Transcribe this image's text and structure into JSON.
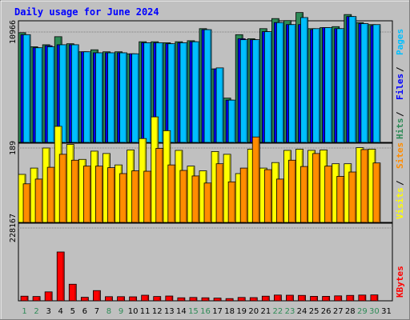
{
  "chart_data": {
    "type": "bar",
    "title": "Daily usage for June 2024",
    "x": [
      "1",
      "2",
      "3",
      "4",
      "5",
      "6",
      "7",
      "8",
      "9",
      "10",
      "11",
      "12",
      "13",
      "14",
      "15",
      "16",
      "17",
      "18",
      "19",
      "20",
      "21",
      "22",
      "23",
      "24",
      "25",
      "26",
      "27",
      "28",
      "29",
      "30",
      "31"
    ],
    "weekend_days": [
      "1",
      "2",
      "8",
      "9",
      "15",
      "16",
      "22",
      "23",
      "29",
      "30"
    ],
    "panels": [
      {
        "name": "traffic",
        "scale_label": "10966",
        "scale_value": 10966,
        "legend": [
          {
            "label": "Hits",
            "color": "#2e8b57"
          },
          {
            "label": "Files",
            "color": "#0000ff"
          },
          {
            "label": "Pages",
            "color": "#00bfff"
          }
        ],
        "series": [
          {
            "name": "Hits",
            "color": "#2e8b57",
            "values": [
              10900,
              9500,
              9700,
              10500,
              9800,
              9000,
              9200,
              9000,
              9000,
              8800,
              10000,
              10000,
              9900,
              10000,
              10100,
              11300,
              7300,
              4400,
              10700,
              10300,
              11300,
              12300,
              12100,
              12900,
              11300,
              11400,
              11500,
              12700,
              11900,
              11700,
              null
            ]
          },
          {
            "name": "Files",
            "color": "#0000ff",
            "values": [
              10700,
              9400,
              9600,
              9700,
              9700,
              9000,
              8900,
              8900,
              8900,
              8800,
              9900,
              9900,
              9800,
              9900,
              10000,
              11200,
              7300,
              4200,
              10300,
              10200,
              11000,
              11900,
              11700,
              11700,
              11200,
              11400,
              11300,
              12500,
              11800,
              11600,
              null
            ]
          },
          {
            "name": "Pages",
            "color": "#00bfff",
            "values": [
              10700,
              9400,
              9500,
              9700,
              9700,
              9000,
              8900,
              8900,
              8900,
              8800,
              9900,
              9900,
              9800,
              9900,
              10000,
              11200,
              7400,
              4200,
              10200,
              10200,
              11000,
              11900,
              11700,
              12400,
              11300,
              11400,
              11300,
              12500,
              11800,
              11700,
              null
            ]
          }
        ]
      },
      {
        "name": "visits",
        "scale_label": "189",
        "scale_value": 189,
        "legend": [
          {
            "label": "Visits",
            "color": "#ffff00"
          },
          {
            "label": "Sites",
            "color": "#ff8c00"
          }
        ],
        "series": [
          {
            "name": "Visits",
            "color": "#ffff00",
            "values": [
              122,
              138,
              189,
              244,
              198,
              160,
              181,
              175,
              146,
              184,
              213,
              268,
              233,
              183,
              143,
              131,
              180,
              173,
              124,
              186,
              138,
              152,
              183,
              186,
              183,
              184,
              149,
              149,
              190,
              186,
              null
            ]
          },
          {
            "name": "Sites",
            "color": "#ff8c00",
            "values": [
              98,
              110,
              140,
              173,
              158,
              143,
              143,
              139,
              124,
              131,
              130,
              188,
              146,
              132,
              118,
              100,
              149,
              103,
              138,
              217,
              134,
              110,
              158,
              142,
              175,
              143,
              117,
              128,
              185,
              151,
              null
            ]
          }
        ]
      },
      {
        "name": "kbytes",
        "scale_label": "228167",
        "scale_value": 228167,
        "legend": [
          {
            "label": "KBytes",
            "color": "#ff0000"
          }
        ],
        "series": [
          {
            "name": "KBytes",
            "color": "#ff0000",
            "values": [
              14500,
              13500,
              28000,
              153000,
              52000,
              11000,
              32000,
              13000,
              13000,
              12500,
              17500,
              13500,
              15000,
              9500,
              10500,
              9500,
              8500,
              7000,
              10500,
              10000,
              14500,
              18000,
              17500,
              17000,
              14000,
              14000,
              15500,
              17000,
              18000,
              18500,
              null
            ]
          }
        ]
      }
    ]
  }
}
